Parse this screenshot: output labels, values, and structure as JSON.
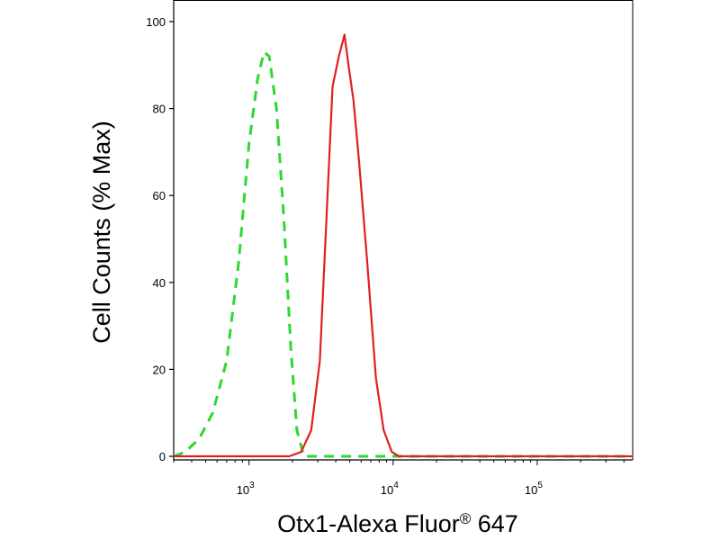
{
  "chart_data": {
    "type": "line",
    "xscale": "log",
    "xlim": [
      300,
      460000
    ],
    "ylim": [
      0,
      100
    ],
    "xlabel": "Otx1-Alexa Fluor",
    "xlabel_sup": "®",
    "xlabel_tail": " 647",
    "ylabel": "Cell Counts (% Max)",
    "yticks": [
      {
        "value": 0,
        "label": "0"
      },
      {
        "value": 20,
        "label": "20"
      },
      {
        "value": 40,
        "label": "40"
      },
      {
        "value": 60,
        "label": "60"
      },
      {
        "value": 80,
        "label": "80"
      },
      {
        "value": 100,
        "label": "100"
      }
    ],
    "xticks": [
      {
        "value": 1000,
        "base": "10",
        "exp": "3"
      },
      {
        "value": 10000,
        "base": "10",
        "exp": "4"
      },
      {
        "value": 100000,
        "base": "10",
        "exp": "5"
      }
    ],
    "series": [
      {
        "color": "#2ed82e",
        "dash": "dashed",
        "points": [
          [
            300,
            0
          ],
          [
            360,
            1
          ],
          [
            450,
            4
          ],
          [
            560,
            10
          ],
          [
            700,
            22
          ],
          [
            850,
            45
          ],
          [
            1000,
            72
          ],
          [
            1150,
            87
          ],
          [
            1270,
            93
          ],
          [
            1380,
            92
          ],
          [
            1550,
            80
          ],
          [
            1750,
            54
          ],
          [
            1950,
            25
          ],
          [
            2150,
            6
          ],
          [
            2400,
            0
          ],
          [
            3000,
            0
          ],
          [
            6000,
            0
          ],
          [
            460000,
            0
          ]
        ]
      },
      {
        "color": "#e02020",
        "dash": "solid",
        "points": [
          [
            300,
            0
          ],
          [
            1900,
            0
          ],
          [
            2300,
            1
          ],
          [
            2700,
            6
          ],
          [
            3100,
            22
          ],
          [
            3450,
            55
          ],
          [
            3800,
            85
          ],
          [
            4200,
            92
          ],
          [
            4600,
            97
          ],
          [
            4900,
            90
          ],
          [
            5300,
            82
          ],
          [
            5800,
            68
          ],
          [
            6600,
            45
          ],
          [
            7600,
            18
          ],
          [
            8600,
            6
          ],
          [
            9800,
            1
          ],
          [
            11000,
            0
          ],
          [
            460000,
            0
          ]
        ]
      }
    ]
  }
}
